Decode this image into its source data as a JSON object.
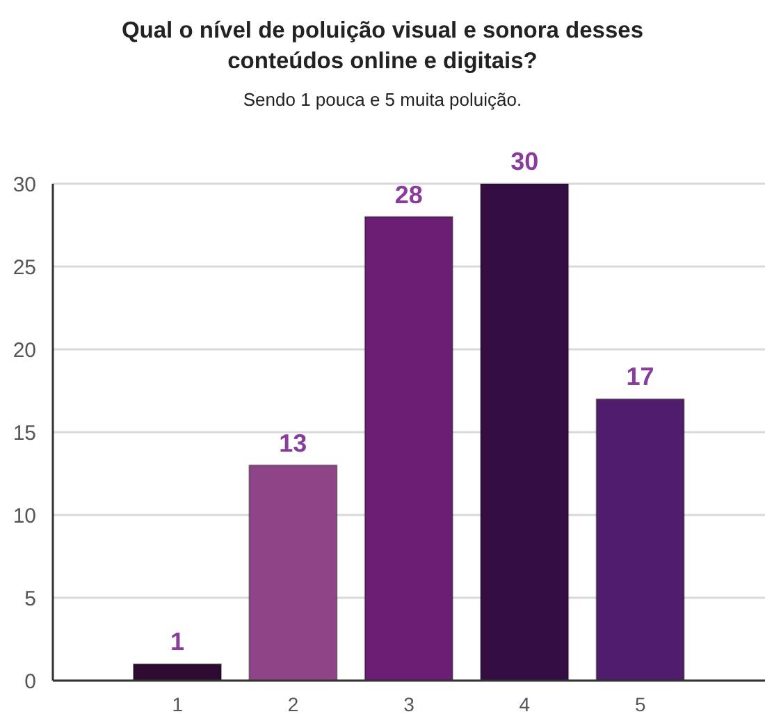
{
  "chart_data": {
    "type": "bar",
    "title": "Qual o nível de poluição visual e sonora desses conteúdos online e digitais?",
    "subtitle": "Sendo 1 pouca e 5 muita poluição.",
    "categories": [
      "1",
      "2",
      "3",
      "4",
      "5"
    ],
    "values": [
      1,
      13,
      28,
      30,
      17
    ],
    "colors": [
      "#2e0a33",
      "#8e4587",
      "#6a1f74",
      "#330c42",
      "#4f1d6b"
    ],
    "ylim": [
      0,
      30
    ],
    "yticks": [
      0,
      5,
      10,
      15,
      20,
      25,
      30
    ],
    "grid": "y",
    "data_labels": true
  }
}
